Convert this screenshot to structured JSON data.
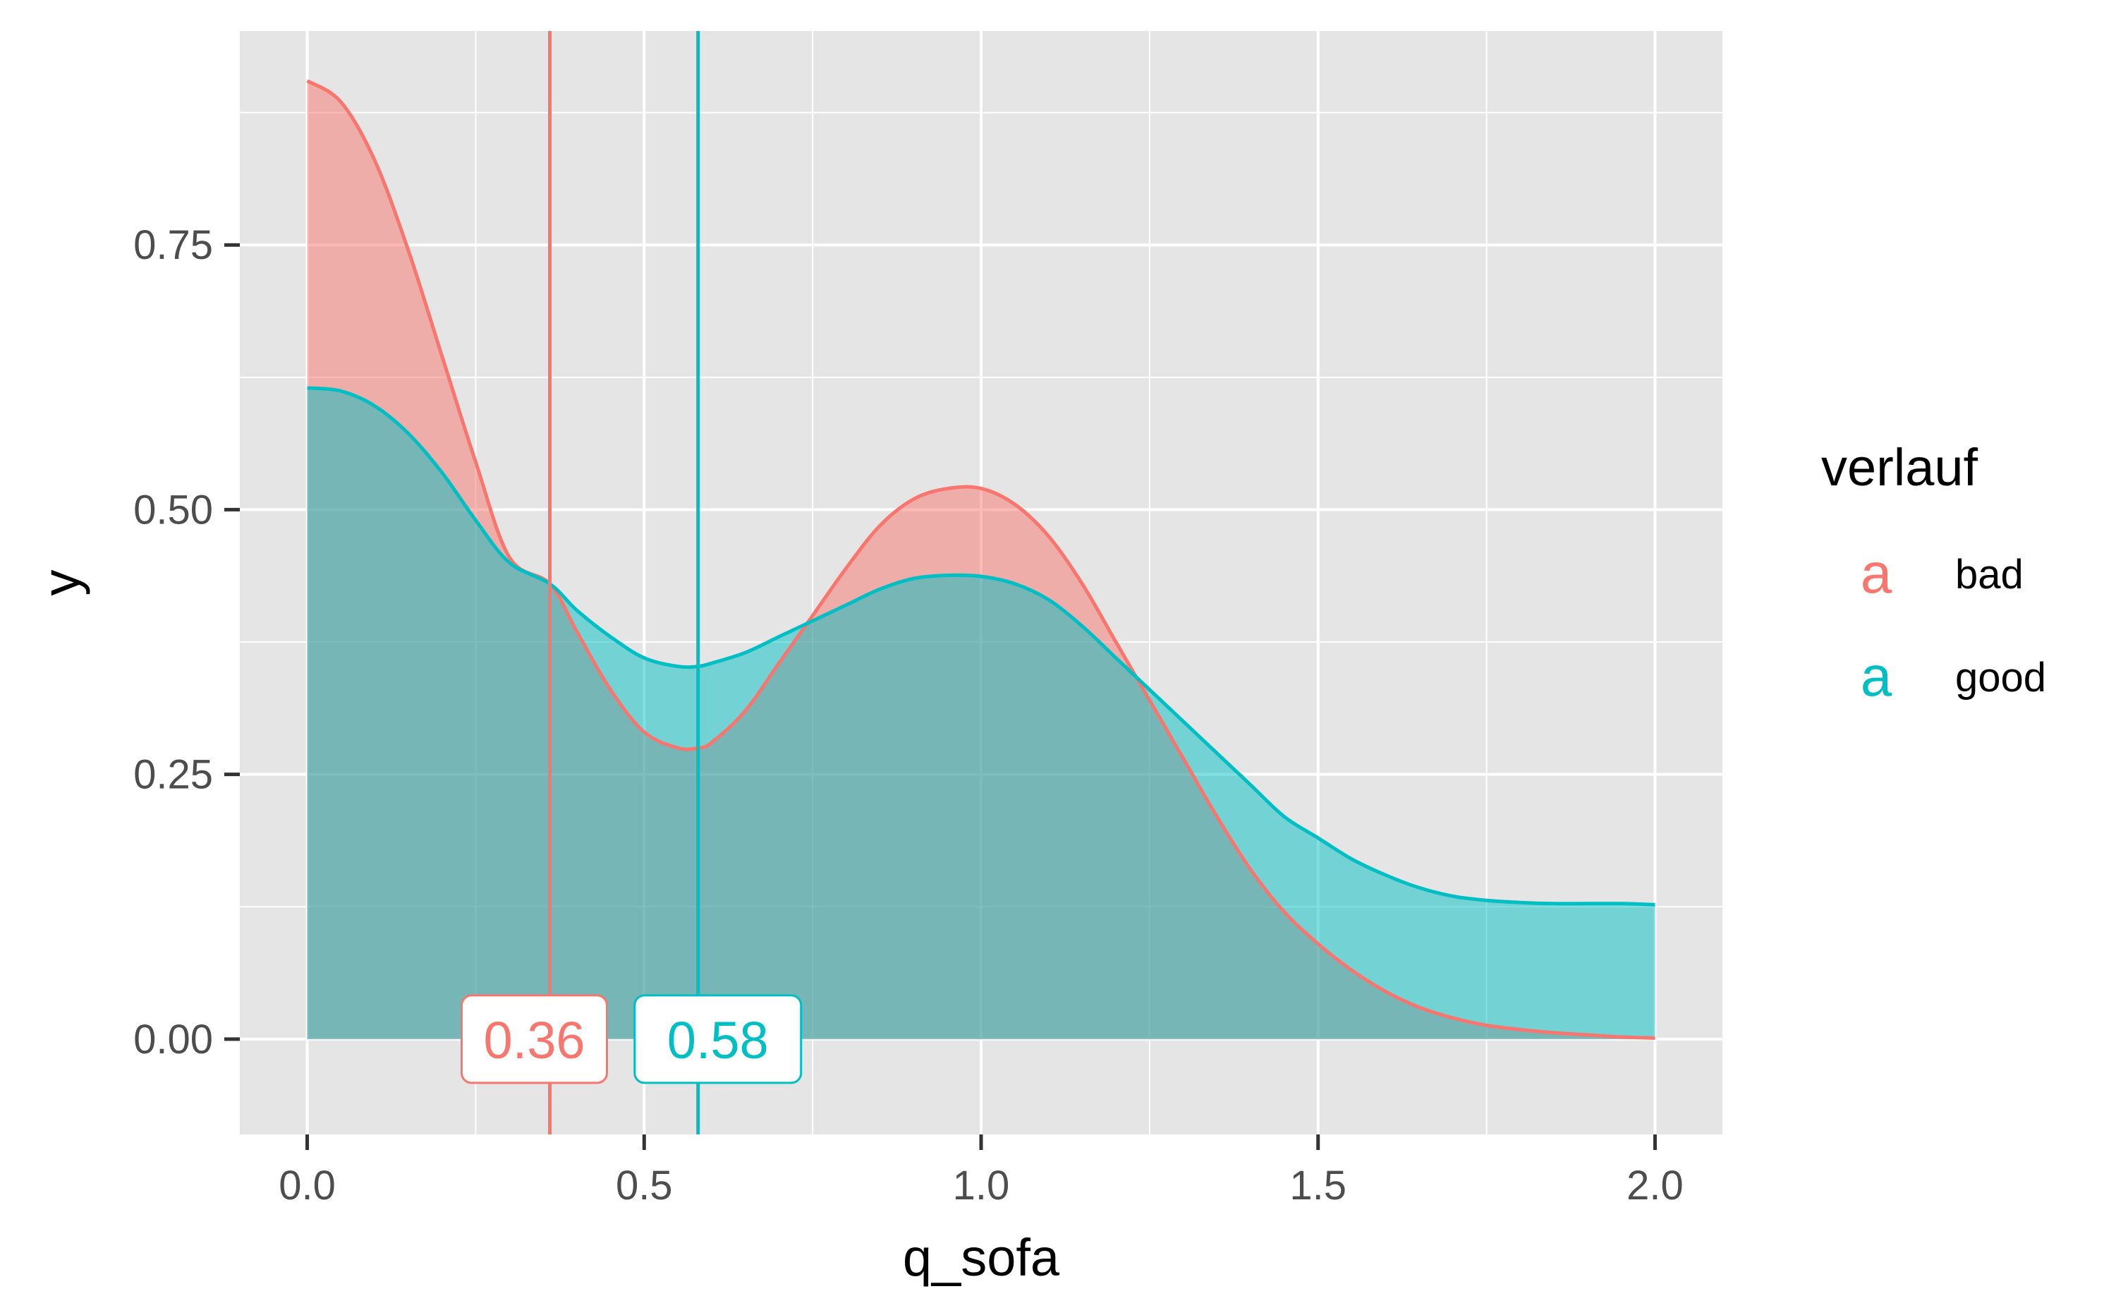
{
  "chart_data": {
    "type": "area",
    "xlabel": "q_sofa",
    "ylabel": "y",
    "xlim": [
      -0.1,
      2.1
    ],
    "ylim": [
      -0.09,
      0.952
    ],
    "x_ticks": [
      0.0,
      0.5,
      1.0,
      1.5,
      2.0
    ],
    "x_tick_labels": [
      "0.0",
      "0.5",
      "1.0",
      "1.5",
      "2.0"
    ],
    "y_ticks": [
      0.0,
      0.25,
      0.5,
      0.75
    ],
    "y_tick_labels": [
      "0.00",
      "0.25",
      "0.50",
      "0.75"
    ],
    "grid": true,
    "legend": {
      "title": "verlauf",
      "placement": "right",
      "key_glyph": "a"
    },
    "series": [
      {
        "name": "bad",
        "color": "#F8766D",
        "fill": "#F8766D",
        "x": [
          0.0,
          0.05,
          0.1,
          0.15,
          0.2,
          0.25,
          0.3,
          0.36,
          0.4,
          0.45,
          0.5,
          0.55,
          0.58,
          0.6,
          0.65,
          0.7,
          0.75,
          0.8,
          0.85,
          0.9,
          0.95,
          1.0,
          1.05,
          1.1,
          1.15,
          1.2,
          1.25,
          1.3,
          1.35,
          1.4,
          1.45,
          1.5,
          1.55,
          1.6,
          1.65,
          1.7,
          1.75,
          1.8,
          1.85,
          1.9,
          1.95,
          2.0
        ],
        "y": [
          0.905,
          0.885,
          0.83,
          0.745,
          0.645,
          0.545,
          0.455,
          0.43,
          0.385,
          0.33,
          0.29,
          0.275,
          0.275,
          0.28,
          0.31,
          0.355,
          0.4,
          0.445,
          0.485,
          0.51,
          0.52,
          0.52,
          0.505,
          0.475,
          0.43,
          0.375,
          0.32,
          0.265,
          0.21,
          0.16,
          0.12,
          0.09,
          0.065,
          0.045,
          0.03,
          0.02,
          0.013,
          0.009,
          0.006,
          0.004,
          0.002,
          0.001
        ]
      },
      {
        "name": "good",
        "color": "#00BFC4",
        "fill": "#00BFC4",
        "x": [
          0.0,
          0.05,
          0.1,
          0.15,
          0.2,
          0.25,
          0.3,
          0.36,
          0.4,
          0.45,
          0.5,
          0.55,
          0.58,
          0.6,
          0.65,
          0.7,
          0.75,
          0.8,
          0.85,
          0.9,
          0.95,
          1.0,
          1.05,
          1.1,
          1.15,
          1.2,
          1.25,
          1.3,
          1.35,
          1.4,
          1.45,
          1.5,
          1.55,
          1.6,
          1.65,
          1.7,
          1.75,
          1.8,
          1.85,
          1.9,
          1.95,
          2.0
        ],
        "y": [
          0.615,
          0.612,
          0.598,
          0.572,
          0.535,
          0.49,
          0.45,
          0.43,
          0.405,
          0.38,
          0.36,
          0.352,
          0.352,
          0.355,
          0.365,
          0.38,
          0.395,
          0.41,
          0.425,
          0.435,
          0.438,
          0.437,
          0.43,
          0.415,
          0.39,
          0.36,
          0.33,
          0.3,
          0.27,
          0.24,
          0.21,
          0.19,
          0.17,
          0.155,
          0.143,
          0.135,
          0.131,
          0.129,
          0.128,
          0.128,
          0.128,
          0.127
        ]
      }
    ],
    "vlines": [
      {
        "series": "bad",
        "x": 0.36,
        "label": "0.36",
        "color": "#F8766D"
      },
      {
        "series": "good",
        "x": 0.58,
        "label": "0.58",
        "color": "#00BFC4"
      }
    ],
    "colors": {
      "panel_background": "#E5E5E5",
      "grid_major": "#FFFFFF",
      "overlap_fill": "#80A9A9"
    }
  }
}
